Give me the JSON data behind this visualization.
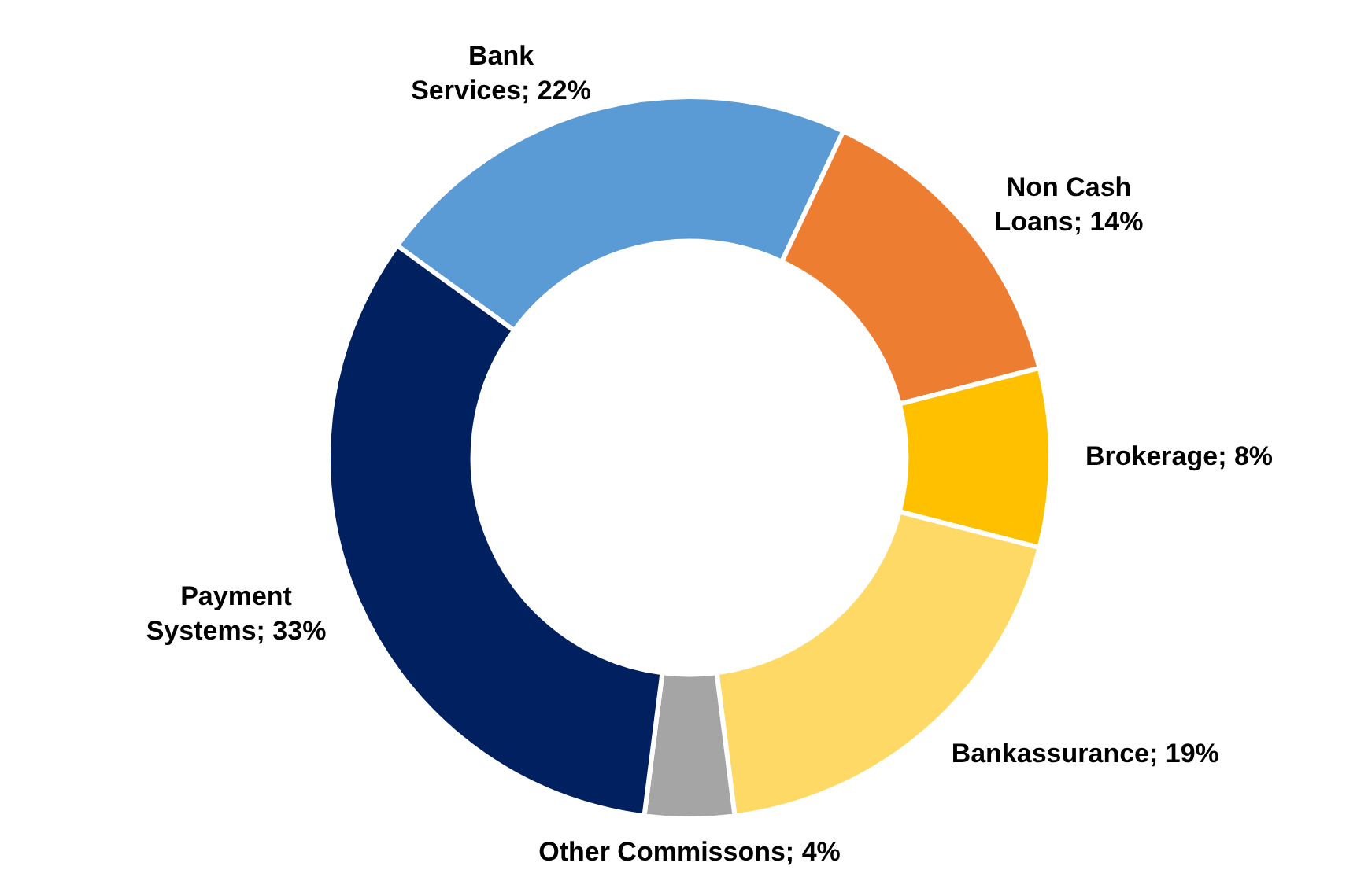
{
  "chart_data": {
    "type": "donut",
    "categories": [
      "Bank Services",
      "Non Cash Loans",
      "Brokerage",
      "Bankassurance",
      "Other Commissons",
      "Payment Systems"
    ],
    "values": [
      22,
      14,
      8,
      19,
      4,
      33
    ],
    "value_labels": [
      "22%",
      "14%",
      "8%",
      "19%",
      "4%",
      "33%"
    ],
    "colors": [
      "#5b9bd5",
      "#ed7d31",
      "#ffc000",
      "#ffd966",
      "#a5a5a5",
      "#002060"
    ],
    "legend": false
  }
}
